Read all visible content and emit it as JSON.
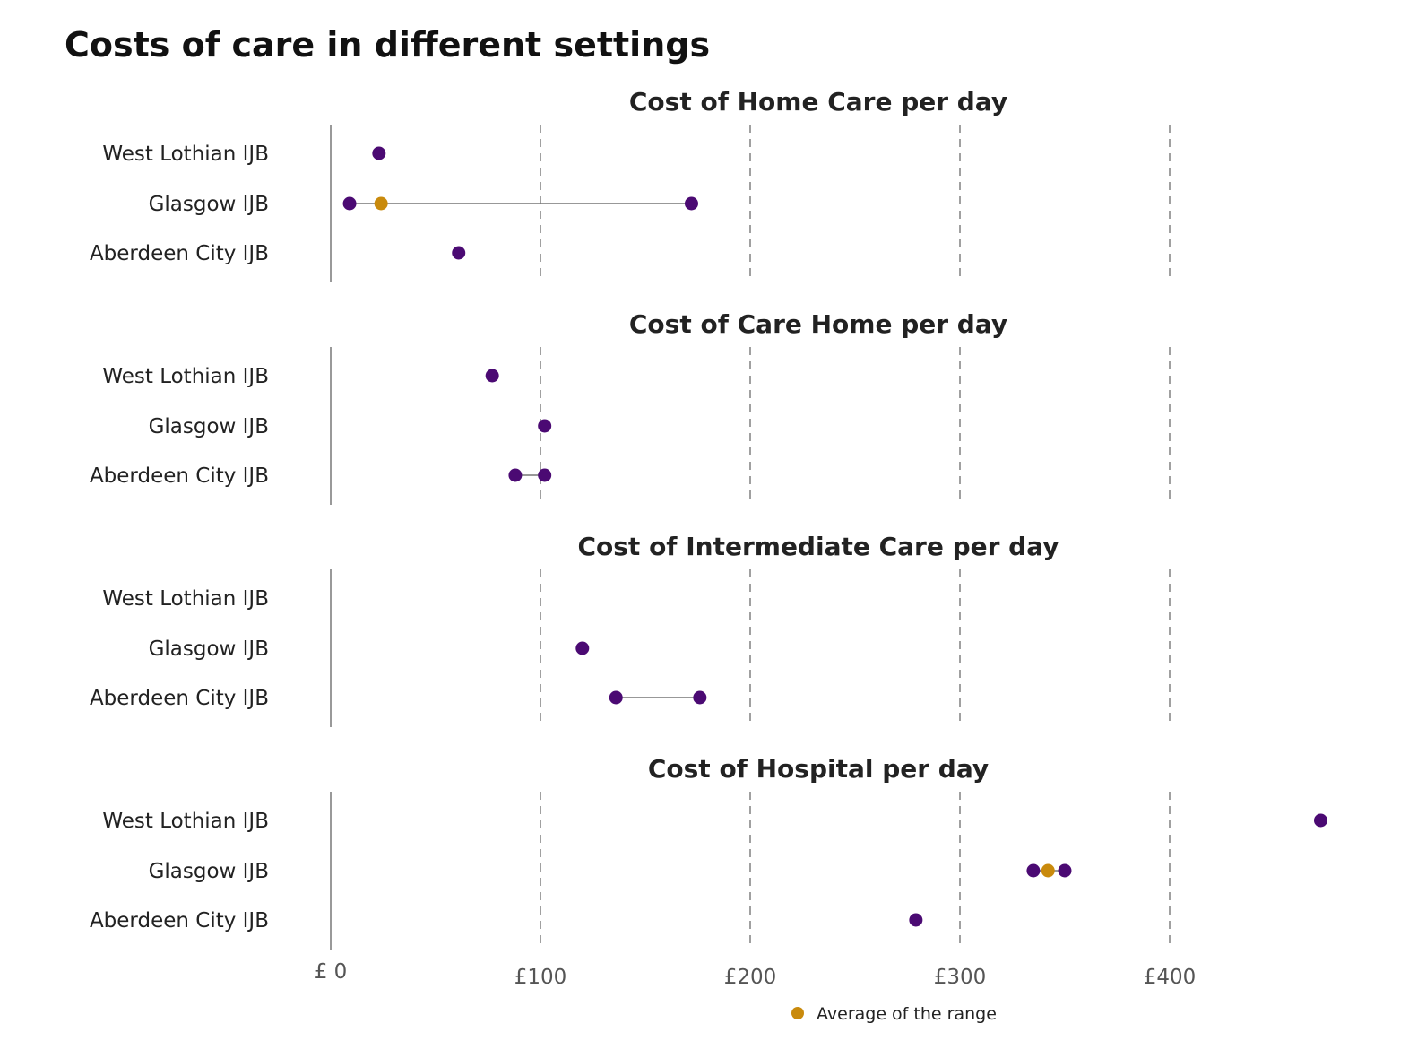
{
  "chart_data": {
    "type": "dot-range",
    "title": "Costs of care in different settings",
    "xlim": [
      0,
      470
    ],
    "x_ticks": [
      0,
      100,
      200,
      300,
      400
    ],
    "x_tick_labels": [
      "£ 0",
      "£100",
      "£200",
      "£300",
      "£400"
    ],
    "grid": "vertical dashed",
    "categories": [
      "West Lothian IJB",
      "Glasgow IJB",
      "Aberdeen City IJB"
    ],
    "facets": [
      {
        "title": "Cost of Home Care per day",
        "rows": [
          {
            "category": "West Lothian IJB",
            "values": [
              23
            ],
            "average": null
          },
          {
            "category": "Glasgow IJB",
            "values": [
              9,
              172
            ],
            "average": 24
          },
          {
            "category": "Aberdeen City IJB",
            "values": [
              61
            ],
            "average": null
          }
        ]
      },
      {
        "title": "Cost of Care Home per day",
        "rows": [
          {
            "category": "West Lothian IJB",
            "values": [
              77
            ],
            "average": null
          },
          {
            "category": "Glasgow IJB",
            "values": [
              102
            ],
            "average": null
          },
          {
            "category": "Aberdeen City IJB",
            "values": [
              88,
              102
            ],
            "average": null
          }
        ]
      },
      {
        "title": "Cost of Intermediate Care per day",
        "rows": [
          {
            "category": "West Lothian IJB",
            "values": [],
            "average": null
          },
          {
            "category": "Glasgow IJB",
            "values": [
              120
            ],
            "average": null
          },
          {
            "category": "Aberdeen City IJB",
            "values": [
              136,
              176
            ],
            "average": null
          }
        ]
      },
      {
        "title": "Cost of Hospital per day",
        "rows": [
          {
            "category": "West Lothian IJB",
            "values": [
              472
            ],
            "average": null
          },
          {
            "category": "Glasgow IJB",
            "values": [
              335,
              350
            ],
            "average": 342
          },
          {
            "category": "Aberdeen City IJB",
            "values": [
              279
            ],
            "average": null
          }
        ]
      }
    ],
    "legend": {
      "label": "Average of the range",
      "position": "bottom-center"
    },
    "colors": {
      "point": "#4b0a73",
      "average": "#c98a0c",
      "range_line": "#777777",
      "grid": "#888888",
      "axis": "#999999"
    }
  }
}
